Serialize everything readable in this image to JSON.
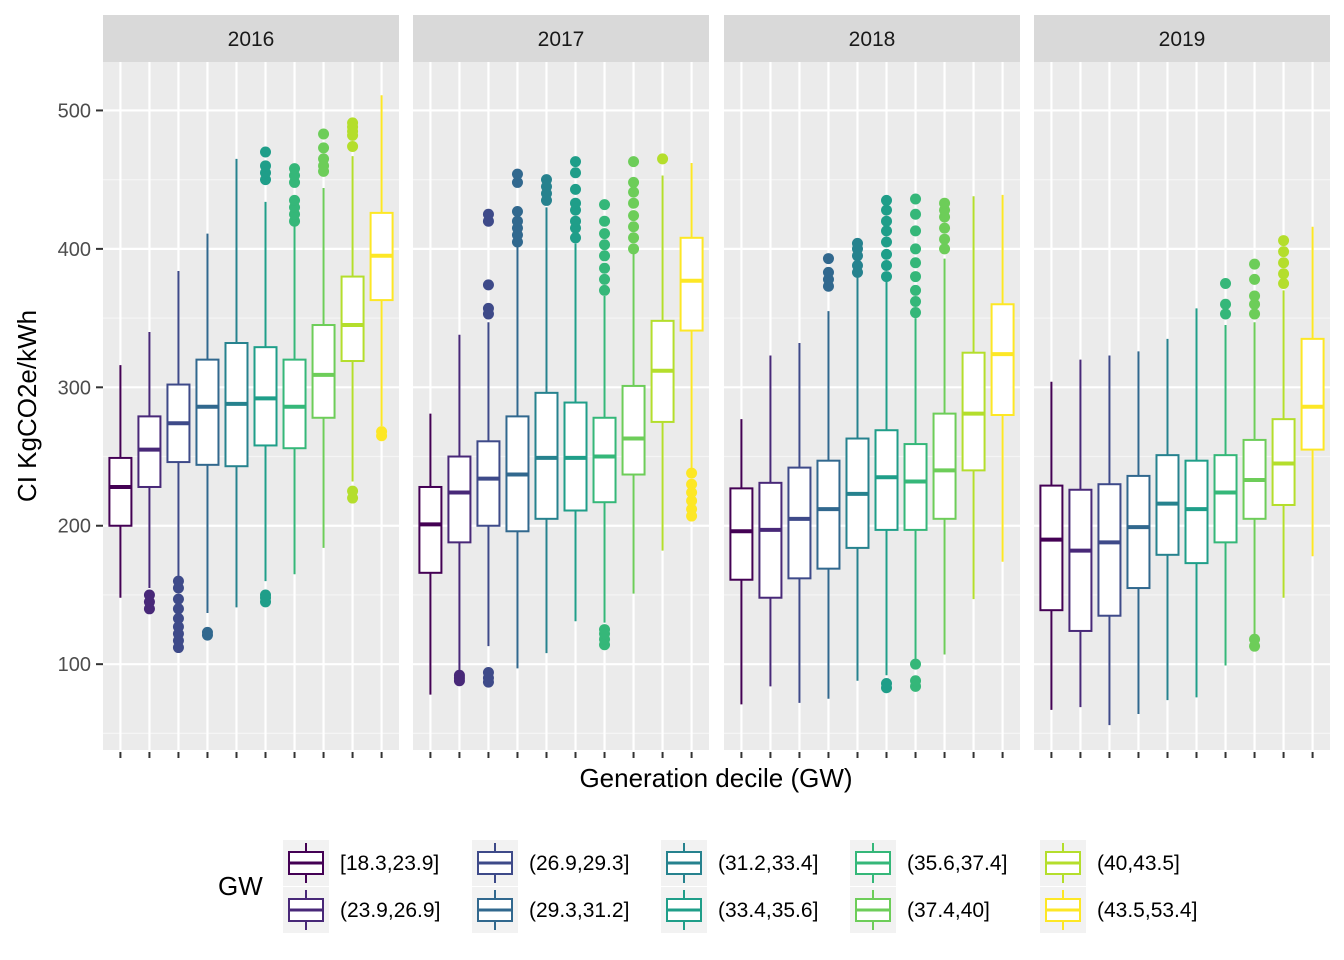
{
  "chart_data": {
    "type": "boxplot",
    "facet_variable": "year",
    "facets": [
      "2016",
      "2017",
      "2018",
      "2019"
    ],
    "xlabel": "Generation decile (GW)",
    "ylabel": "CI KgCO2e/kWh",
    "ylim": [
      38,
      535
    ],
    "y_ticks": [
      100,
      200,
      300,
      400,
      500
    ],
    "grid": true,
    "legend": {
      "title": "GW",
      "position": "bottom",
      "entries": [
        "[18.3,23.9]",
        "(23.9,26.9]",
        "(26.9,29.3]",
        "(29.3,31.2]",
        "(31.2,33.4]",
        "(33.4,35.6]",
        "(35.6,37.4]",
        "(37.4,40]",
        "(40,43.5]",
        "(43.5,53.4]"
      ]
    },
    "colors": [
      "#440154",
      "#482878",
      "#3E4A89",
      "#31688E",
      "#26828E",
      "#1F9E89",
      "#35B779",
      "#6DCD59",
      "#B4DE2C",
      "#FDE725"
    ],
    "boxes": {
      "2016": [
        {
          "lw": 148,
          "q1": 200,
          "med": 228,
          "q3": 249,
          "uw": 316,
          "out": []
        },
        {
          "lw": 155,
          "q1": 228,
          "med": 255,
          "q3": 279,
          "uw": 340,
          "out": [
            140,
            145,
            150
          ]
        },
        {
          "lw": 163,
          "q1": 246,
          "med": 274,
          "q3": 302,
          "uw": 384,
          "out": [
            112,
            117,
            122,
            127,
            133,
            140,
            147,
            155,
            160
          ]
        },
        {
          "lw": 137,
          "q1": 244,
          "med": 286,
          "q3": 320,
          "uw": 411,
          "out": [
            121,
            123
          ]
        },
        {
          "lw": 141,
          "q1": 243,
          "med": 288,
          "q3": 332,
          "uw": 465,
          "out": []
        },
        {
          "lw": 160,
          "q1": 258,
          "med": 292,
          "q3": 329,
          "uw": 434,
          "out": [
            145,
            148,
            150,
            450,
            455,
            460,
            470
          ]
        },
        {
          "lw": 165,
          "q1": 256,
          "med": 286,
          "q3": 320,
          "uw": 417,
          "out": [
            420,
            425,
            430,
            435,
            448,
            453,
            458
          ]
        },
        {
          "lw": 184,
          "q1": 278,
          "med": 309,
          "q3": 345,
          "uw": 444,
          "out": [
            456,
            460,
            465,
            473,
            483
          ]
        },
        {
          "lw": 232,
          "q1": 319,
          "med": 345,
          "q3": 380,
          "uw": 467,
          "out": [
            220,
            225,
            474,
            482,
            485,
            488,
            491
          ]
        },
        {
          "lw": 272,
          "q1": 363,
          "med": 395,
          "q3": 426,
          "uw": 511,
          "out": [
            265,
            268
          ]
        }
      ],
      "2017": [
        {
          "lw": 78,
          "q1": 166,
          "med": 201,
          "q3": 228,
          "uw": 281,
          "out": []
        },
        {
          "lw": 95,
          "q1": 188,
          "med": 224,
          "q3": 250,
          "uw": 338,
          "out": [
            88,
            90,
            92
          ]
        },
        {
          "lw": 113,
          "q1": 200,
          "med": 234,
          "q3": 261,
          "uw": 347,
          "out": [
            87,
            90,
            94,
            353,
            357,
            374,
            420,
            425
          ]
        },
        {
          "lw": 97,
          "q1": 196,
          "med": 237,
          "q3": 279,
          "uw": 403,
          "out": [
            405,
            410,
            415,
            420,
            427,
            448,
            454
          ]
        },
        {
          "lw": 108,
          "q1": 205,
          "med": 249,
          "q3": 296,
          "uw": 430,
          "out": [
            435,
            440,
            445,
            450
          ]
        },
        {
          "lw": 131,
          "q1": 211,
          "med": 249,
          "q3": 289,
          "uw": 404,
          "out": [
            408,
            415,
            420,
            428,
            433,
            443,
            455,
            463
          ]
        },
        {
          "lw": 130,
          "q1": 217,
          "med": 250,
          "q3": 278,
          "uw": 366,
          "out": [
            114,
            118,
            122,
            125,
            370,
            378,
            386,
            395,
            403,
            411,
            420,
            432
          ]
        },
        {
          "lw": 151,
          "q1": 237,
          "med": 263,
          "q3": 301,
          "uw": 399,
          "out": [
            400,
            408,
            416,
            424,
            433,
            441,
            448,
            463
          ]
        },
        {
          "lw": 182,
          "q1": 275,
          "med": 312,
          "q3": 348,
          "uw": 453,
          "out": [
            465
          ]
        },
        {
          "lw": 240,
          "q1": 341,
          "med": 377,
          "q3": 408,
          "uw": 462,
          "out": [
            207,
            212,
            218,
            224,
            230,
            238
          ]
        }
      ],
      "2018": [
        {
          "lw": 71,
          "q1": 161,
          "med": 196,
          "q3": 227,
          "uw": 277,
          "out": []
        },
        {
          "lw": 84,
          "q1": 148,
          "med": 197,
          "q3": 231,
          "uw": 323,
          "out": []
        },
        {
          "lw": 72,
          "q1": 162,
          "med": 205,
          "q3": 242,
          "uw": 332,
          "out": []
        },
        {
          "lw": 75,
          "q1": 169,
          "med": 212,
          "q3": 247,
          "uw": 355,
          "out": [
            373,
            378,
            383,
            393
          ]
        },
        {
          "lw": 88,
          "q1": 184,
          "med": 223,
          "q3": 263,
          "uw": 380,
          "out": [
            383,
            388,
            395,
            400,
            404
          ]
        },
        {
          "lw": 92,
          "q1": 197,
          "med": 235,
          "q3": 269,
          "uw": 378,
          "out": [
            83,
            86,
            380,
            388,
            396,
            405,
            413,
            420,
            428,
            435
          ]
        },
        {
          "lw": 102,
          "q1": 197,
          "med": 232,
          "q3": 259,
          "uw": 350,
          "out": [
            84,
            88,
            100,
            354,
            362,
            370,
            380,
            390,
            400,
            413,
            425,
            436
          ]
        },
        {
          "lw": 107,
          "q1": 205,
          "med": 240,
          "q3": 281,
          "uw": 393,
          "out": [
            400,
            407,
            415,
            423,
            428,
            433
          ]
        },
        {
          "lw": 147,
          "q1": 240,
          "med": 281,
          "q3": 325,
          "uw": 438,
          "out": []
        },
        {
          "lw": 174,
          "q1": 280,
          "med": 324,
          "q3": 360,
          "uw": 439,
          "out": []
        }
      ],
      "2019": [
        {
          "lw": 67,
          "q1": 139,
          "med": 190,
          "q3": 229,
          "uw": 304,
          "out": []
        },
        {
          "lw": 69,
          "q1": 124,
          "med": 182,
          "q3": 226,
          "uw": 320,
          "out": []
        },
        {
          "lw": 56,
          "q1": 135,
          "med": 188,
          "q3": 230,
          "uw": 323,
          "out": []
        },
        {
          "lw": 64,
          "q1": 155,
          "med": 199,
          "q3": 236,
          "uw": 326,
          "out": []
        },
        {
          "lw": 74,
          "q1": 179,
          "med": 216,
          "q3": 251,
          "uw": 335,
          "out": []
        },
        {
          "lw": 76,
          "q1": 173,
          "med": 212,
          "q3": 247,
          "uw": 357,
          "out": []
        },
        {
          "lw": 99,
          "q1": 188,
          "med": 224,
          "q3": 251,
          "uw": 345,
          "out": [
            353,
            360,
            375
          ]
        },
        {
          "lw": 115,
          "q1": 205,
          "med": 233,
          "q3": 262,
          "uw": 347,
          "out": [
            113,
            118,
            353,
            360,
            366,
            378,
            389
          ]
        },
        {
          "lw": 148,
          "q1": 215,
          "med": 245,
          "q3": 277,
          "uw": 370,
          "out": [
            375,
            382,
            390,
            398,
            406
          ]
        },
        {
          "lw": 178,
          "q1": 255,
          "med": 286,
          "q3": 335,
          "uw": 416,
          "out": []
        }
      ]
    }
  }
}
